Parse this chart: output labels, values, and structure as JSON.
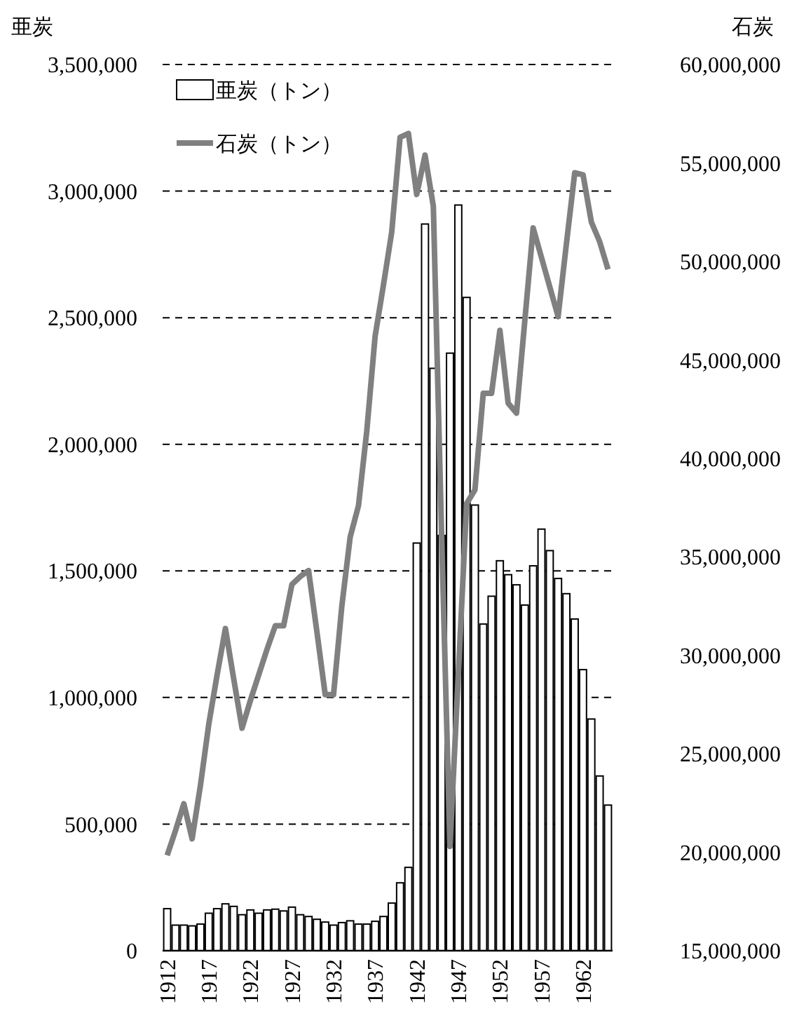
{
  "chart_data": {
    "type": "bar",
    "ylabel": "亜炭",
    "y2label": "石炭",
    "categories": [
      "1912",
      null,
      null,
      null,
      null,
      "1917",
      null,
      null,
      null,
      null,
      "1922",
      null,
      null,
      null,
      null,
      "1927",
      null,
      null,
      null,
      null,
      "1932",
      null,
      null,
      null,
      null,
      "1937",
      null,
      null,
      null,
      null,
      "1942",
      null,
      null,
      null,
      null,
      "1947",
      null,
      null,
      null,
      null,
      "1952",
      null,
      null,
      null,
      null,
      "1957",
      null,
      null,
      null,
      null,
      "1962",
      null,
      null,
      null
    ],
    "series": [
      {
        "name": "亜炭（トン）",
        "color": "#ffffff",
        "values": [
          166000,
          101000,
          101000,
          98000,
          105000,
          148000,
          166000,
          185000,
          175000,
          142000,
          161000,
          148000,
          161000,
          164000,
          157000,
          172000,
          142000,
          135000,
          124000,
          113000,
          101000,
          111000,
          118000,
          105000,
          105000,
          116000,
          135000,
          188000,
          268000,
          329000,
          1610000,
          2870000,
          2300000,
          1640000,
          2360000,
          2945000,
          2580000,
          1760000,
          1290000,
          1400000,
          1540000,
          1485000,
          1445000,
          1365000,
          1520000,
          1665000,
          1580000,
          1470000,
          1410000,
          1310000,
          1110000,
          915000,
          690000,
          575000
        ]
      },
      {
        "name": "石炭（トン）",
        "type": "line",
        "axis": "y2",
        "color": "#808080",
        "marker": "none",
        "line_style": "solid",
        "values": [
          19840000,
          21100000,
          22460000,
          20680000,
          23400000,
          26500000,
          29000000,
          31360000,
          28800000,
          26300000,
          27700000,
          29000000,
          30300000,
          31500000,
          31500000,
          33600000,
          34000000,
          34300000,
          31200000,
          28000000,
          28000000,
          32500000,
          36000000,
          37600000,
          41400000,
          46200000,
          48800000,
          51500000,
          56300000,
          56500000,
          53400000,
          55400000,
          52800000,
          36000000,
          20300000,
          29000000,
          37700000,
          38400000,
          43300000,
          43300000,
          46500000,
          42800000,
          42300000,
          47000000,
          51700000,
          50200000,
          48700000,
          47200000,
          50900000,
          54500000,
          54400000,
          52000000,
          51000000,
          49600000
        ]
      }
    ],
    "ylim": [
      0,
      3500000
    ],
    "yticks": [
      {
        "value": 0,
        "label": "0"
      },
      {
        "value": 500000,
        "label": "500,000"
      },
      {
        "value": 1000000,
        "label": "1,000,000"
      },
      {
        "value": 1500000,
        "label": "1,500,000"
      },
      {
        "value": 2000000,
        "label": "2,000,000"
      },
      {
        "value": 2500000,
        "label": "2,500,000"
      },
      {
        "value": 3000000,
        "label": "3,000,000"
      },
      {
        "value": 3500000,
        "label": "3,500,000"
      }
    ],
    "y2lim": [
      15000000,
      60000000
    ],
    "y2ticks": [
      {
        "value": 15000000,
        "label": "15,000,000"
      },
      {
        "value": 20000000,
        "label": "20,000,000"
      },
      {
        "value": 25000000,
        "label": "25,000,000"
      },
      {
        "value": 30000000,
        "label": "30,000,000"
      },
      {
        "value": 35000000,
        "label": "35,000,000"
      },
      {
        "value": 40000000,
        "label": "40,000,000"
      },
      {
        "value": 45000000,
        "label": "45,000,000"
      },
      {
        "value": 50000000,
        "label": "50,000,000"
      },
      {
        "value": 55000000,
        "label": "55,000,000"
      },
      {
        "value": 60000000,
        "label": "60,000,000"
      }
    ],
    "grid": "y",
    "legend": "top left"
  }
}
